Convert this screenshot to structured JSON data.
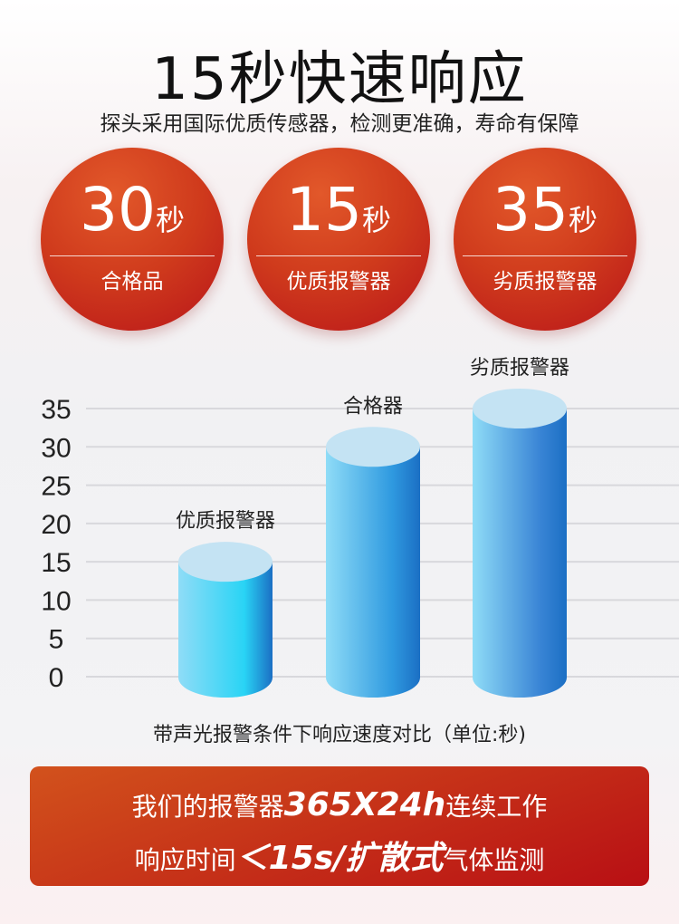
{
  "header": {
    "title": "15秒快速响应",
    "subtitle": "探头采用国际优质传感器，检测更准确，寿命有保障"
  },
  "badges": [
    {
      "value": "30",
      "unit": "秒",
      "label": "合格品"
    },
    {
      "value": "15",
      "unit": "秒",
      "label": "优质报警器"
    },
    {
      "value": "35",
      "unit": "秒",
      "label": "劣质报警器"
    }
  ],
  "chart_data": {
    "type": "bar",
    "categories": [
      "优质报警器",
      "合格器",
      "劣质报警器"
    ],
    "values": [
      15,
      30,
      35
    ],
    "ylim": [
      0,
      35
    ],
    "yticks": [
      "0",
      "5",
      "10",
      "15",
      "20",
      "25",
      "30",
      "35"
    ],
    "grid": true,
    "xlabel": "带声光报警条件下响应速度对比（单位:秒)",
    "colors": [
      "#29d4f5",
      "#2f9ae0",
      "#3b86d6"
    ]
  },
  "banner": {
    "line1_pre": "我们的报警器",
    "line1_em": "365X24h",
    "line1_post": "连续工作",
    "line2_pre": "响应时间",
    "line2_em": "＜15s/扩散式",
    "line2_post": "气体监测"
  }
}
